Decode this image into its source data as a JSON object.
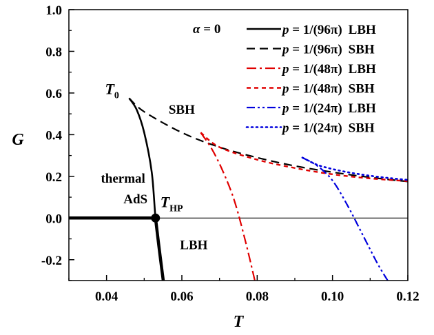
{
  "chart_data": {
    "type": "line",
    "title": "",
    "xlabel": "T",
    "ylabel": "G",
    "xlim": [
      0.03,
      0.12
    ],
    "ylim": [
      -0.3,
      1.0
    ],
    "x_ticks": [
      0.04,
      0.06,
      0.08,
      0.1,
      0.12
    ],
    "x_tick_labels": [
      "0.04",
      "0.06",
      "0.08",
      "0.10",
      "0.12"
    ],
    "y_ticks": [
      -0.2,
      0.0,
      0.2,
      0.4,
      0.6,
      0.8,
      1.0
    ],
    "y_tick_labels": [
      "-0.2",
      "0.0",
      "0.2",
      "0.4",
      "0.6",
      "0.8",
      "1.0"
    ],
    "grid": false,
    "legend_placement": "top-right",
    "legend_header": "α = 0",
    "series": [
      {
        "name": "p = 1/(96π)  LBH",
        "legend_p": "p",
        "legend_eq": " = 1/(96π)",
        "legend_kind": "LBH",
        "color": "#000000",
        "dash": "none",
        "x": [
          0.046,
          0.048,
          0.05,
          0.052,
          0.053,
          0.054,
          0.0552
        ],
        "y": [
          0.575,
          0.52,
          0.41,
          0.22,
          0.0,
          -0.15,
          -0.32
        ]
      },
      {
        "name": "p = 1/(96π)  SBH",
        "legend_p": "p",
        "legend_eq": " = 1/(96π)",
        "legend_kind": "SBH",
        "color": "#000000",
        "dash": "dashed",
        "x": [
          0.046,
          0.05,
          0.06,
          0.07,
          0.08,
          0.09,
          0.1,
          0.11,
          0.12
        ],
        "y": [
          0.575,
          0.51,
          0.41,
          0.34,
          0.29,
          0.25,
          0.22,
          0.195,
          0.175
        ]
      },
      {
        "name": "p = 1/(48π)  LBH",
        "legend_p": "p",
        "legend_eq": " = 1/(48π)",
        "legend_kind": "LBH",
        "color": "#e00000",
        "dash": "dashdot",
        "x": [
          0.065,
          0.068,
          0.071,
          0.074,
          0.077,
          0.0795
        ],
        "y": [
          0.41,
          0.33,
          0.22,
          0.08,
          -0.12,
          -0.31
        ]
      },
      {
        "name": "p = 1/(48π)  SBH",
        "legend_p": "p",
        "legend_eq": " = 1/(48π)",
        "legend_kind": "SBH",
        "color": "#e00000",
        "dash": "shortdash",
        "x": [
          0.065,
          0.07,
          0.08,
          0.09,
          0.1,
          0.11,
          0.12
        ],
        "y": [
          0.41,
          0.34,
          0.28,
          0.24,
          0.21,
          0.19,
          0.177
        ]
      },
      {
        "name": "p = 1/(24π)  LBH",
        "legend_p": "p",
        "legend_eq": " = 1/(24π)",
        "legend_kind": "LBH",
        "color": "#0000dd",
        "dash": "dashdotdot",
        "x": [
          0.092,
          0.096,
          0.1,
          0.104,
          0.108,
          0.112,
          0.115
        ],
        "y": [
          0.29,
          0.25,
          0.18,
          0.06,
          -0.08,
          -0.22,
          -0.31
        ]
      },
      {
        "name": "p = 1/(24π)  SBH",
        "legend_p": "p",
        "legend_eq": " = 1/(24π)",
        "legend_kind": "SBH",
        "color": "#0000dd",
        "dash": "dotted",
        "x": [
          0.092,
          0.096,
          0.1,
          0.104,
          0.108,
          0.112,
          0.116,
          0.12
        ],
        "y": [
          0.29,
          0.255,
          0.235,
          0.22,
          0.208,
          0.198,
          0.19,
          0.183
        ]
      }
    ],
    "reference_lines": [
      {
        "kind": "thermal AdS",
        "y": 0.0,
        "x_from": 0.03,
        "x_to": 0.053
      },
      {
        "kind": "G = 0 line",
        "y": 0.0,
        "x_from": 0.053,
        "x_to": 0.12
      }
    ],
    "annotations": [
      {
        "text": "T",
        "sub": "0",
        "x": 0.046,
        "y": 0.575,
        "placement": "left"
      },
      {
        "text": "T",
        "sub": "HP",
        "x": 0.053,
        "y": 0.0,
        "placement": "above-right"
      },
      {
        "text": "SBH",
        "x": 0.0565,
        "y": 0.5
      },
      {
        "text": "thermal",
        "x": 0.0385,
        "y": 0.17
      },
      {
        "text": "AdS",
        "x": 0.0445,
        "y": 0.07
      },
      {
        "text": "LBH",
        "x": 0.0595,
        "y": -0.15
      }
    ],
    "hp_point": {
      "x": 0.053,
      "y": 0.0
    }
  }
}
